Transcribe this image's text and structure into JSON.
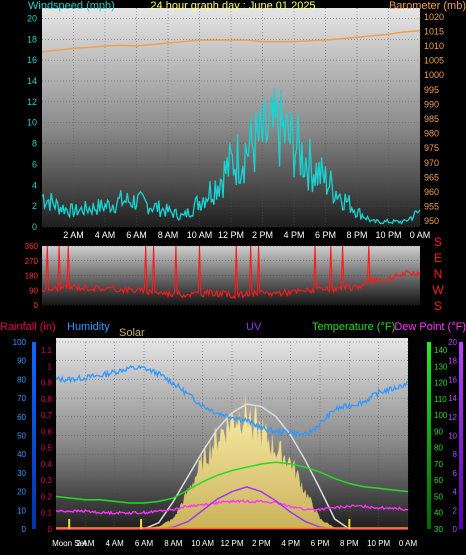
{
  "colors": {
    "windspeed": "#19d3d3",
    "barometer": "#f0a050",
    "direction": "#ff1a1a",
    "rain": "#e0005a",
    "humidity": "#3399ff",
    "solar": "#e8d890",
    "uv": "#9b30ff",
    "temperature": "#22dd22",
    "dewpoint": "#ff33ff",
    "title": "#ffff66"
  },
  "chart_data": [
    {
      "type": "line",
      "title": "24 hour graph day : June 01 2025",
      "ylabel_left": "Windspeed (mph)",
      "ylabel_right": "Barometer (mb)",
      "x_ticks": [
        "2 AM",
        "4 AM",
        "6 AM",
        "8 AM",
        "10 AM",
        "12 PM",
        "2 PM",
        "4 PM",
        "6 PM",
        "8 PM",
        "10 PM",
        "0 AM"
      ],
      "y_left_ticks": [
        "0",
        "2",
        "4",
        "6",
        "8",
        "10",
        "12",
        "14",
        "16",
        "18",
        "20"
      ],
      "y_right_ticks": [
        "950",
        "955",
        "960",
        "965",
        "970",
        "975",
        "980",
        "985",
        "990",
        "995",
        "1000",
        "1005",
        "1010",
        "1015",
        "1020"
      ],
      "ylim_left": [
        0,
        21
      ],
      "ylim_right": [
        948,
        1023
      ],
      "x": [
        0,
        1,
        2,
        3,
        4,
        5,
        6,
        7,
        8,
        9,
        10,
        11,
        12,
        13,
        14,
        15,
        16,
        17,
        18,
        19,
        20,
        21,
        22,
        23,
        24
      ],
      "series": [
        {
          "name": "Windspeed (mph)",
          "axis": "left",
          "values": [
            3.0,
            2.0,
            1.5,
            1.8,
            2.0,
            2.5,
            2.5,
            2.0,
            1.5,
            1.0,
            2.5,
            4.0,
            6.0,
            7.5,
            8.5,
            9.5,
            8.0,
            6.0,
            4.5,
            3.0,
            1.5,
            0.5,
            0.5,
            0.5,
            1.5
          ]
        },
        {
          "name": "Barometer (mb)",
          "axis": "right",
          "values": [
            1008.0,
            1008.5,
            1009.2,
            1009.5,
            1010.0,
            1010.2,
            1010.0,
            1010.5,
            1011.0,
            1011.5,
            1012.0,
            1012.0,
            1012.0,
            1012.0,
            1011.5,
            1011.5,
            1011.5,
            1011.8,
            1012.0,
            1012.5,
            1013.0,
            1013.5,
            1014.0,
            1014.8,
            1015.2
          ]
        }
      ]
    },
    {
      "type": "line",
      "title": "",
      "ylabel_right": "SENWS",
      "y_left_ticks": [
        "0",
        "90",
        "180",
        "270",
        "360"
      ],
      "compass_labels": [
        "S",
        "E",
        "N",
        "W",
        "S"
      ],
      "ylim": [
        0,
        360
      ],
      "x": [
        0,
        1,
        2,
        3,
        4,
        5,
        6,
        7,
        8,
        9,
        10,
        11,
        12,
        13,
        14,
        15,
        16,
        17,
        18,
        19,
        20,
        21,
        22,
        23,
        24
      ],
      "series": [
        {
          "name": "Wind direction",
          "values": [
            95,
            100,
            110,
            105,
            100,
            95,
            90,
            80,
            70,
            65,
            70,
            75,
            60,
            65,
            70,
            75,
            80,
            90,
            95,
            100,
            110,
            150,
            160,
            190,
            200
          ]
        }
      ]
    },
    {
      "type": "area",
      "title": "",
      "legend": [
        "Rainfall (in)",
        "Humidity",
        "Solar",
        "UV",
        "Temperature (°F)",
        "Dew Point (°F)"
      ],
      "x_ticks": [
        "Moon Set",
        "2 AM",
        "4 AM",
        "6 AM",
        "8 AM",
        "10 AM",
        "12 PM",
        "2 PM",
        "4 PM",
        "6 PM",
        "8 PM",
        "10 PM",
        "0 AM"
      ],
      "y_humidity_ticks": [
        "0",
        "10",
        "20",
        "30",
        "40",
        "50",
        "60",
        "70",
        "80",
        "90",
        "100"
      ],
      "y_rain_ticks": [
        "0",
        "0.1",
        "0.2",
        "0.3",
        "0.4",
        "0.5",
        "0.6",
        "0.7",
        "0.8",
        "0.9",
        "1",
        "1.1"
      ],
      "y_temp_ticks": [
        "30",
        "40",
        "50",
        "60",
        "70",
        "80",
        "90",
        "100",
        "110",
        "120",
        "130",
        "140"
      ],
      "y_uv_ticks": [
        "0",
        "2",
        "4",
        "6",
        "8",
        "10",
        "12",
        "14",
        "16",
        "18",
        "20"
      ],
      "ylim_humidity": [
        0,
        100
      ],
      "ylim_rain": [
        0,
        1.15
      ],
      "ylim_temp": [
        30,
        145
      ],
      "ylim_uv": [
        0,
        20
      ],
      "x": [
        0,
        1,
        2,
        3,
        4,
        5,
        6,
        7,
        8,
        9,
        10,
        11,
        12,
        13,
        14,
        15,
        16,
        17,
        18,
        19,
        20,
        21,
        22,
        23,
        24
      ],
      "series": [
        {
          "name": "Humidity",
          "values": [
            80,
            80,
            81,
            82,
            84,
            86,
            86,
            83,
            78,
            72,
            66,
            62,
            60,
            58,
            54,
            52,
            52,
            50,
            56,
            64,
            66,
            68,
            73,
            75,
            78
          ]
        },
        {
          "name": "Temperature (°F)",
          "values": [
            50,
            49,
            48,
            48,
            47,
            46,
            46,
            47,
            49,
            54,
            59,
            63,
            66,
            68,
            70,
            71,
            70,
            68,
            65,
            61,
            58,
            56,
            55,
            54,
            53
          ]
        },
        {
          "name": "Dew Point (°F)",
          "values": [
            41,
            41,
            41,
            40,
            40,
            40,
            40,
            41,
            42,
            44,
            45,
            46,
            47,
            47,
            47,
            46,
            44,
            42,
            42,
            43,
            44,
            44,
            43,
            43,
            42
          ]
        },
        {
          "name": "UV",
          "values": [
            0,
            0,
            0,
            0,
            0,
            0,
            0,
            0,
            0.2,
            0.8,
            2.0,
            3.2,
            4.0,
            4.5,
            4.0,
            3.0,
            1.8,
            0.8,
            0.2,
            0,
            0,
            0,
            0,
            0,
            0
          ]
        },
        {
          "name": "Solar",
          "values": [
            0,
            0,
            0,
            0,
            0,
            0,
            0,
            0.02,
            0.08,
            0.3,
            0.55,
            0.75,
            0.9,
            0.95,
            0.8,
            0.65,
            0.55,
            0.3,
            0.08,
            0.01,
            0,
            0,
            0,
            0,
            0
          ]
        },
        {
          "name": "Solar max",
          "values": [
            0,
            0,
            0,
            0,
            0,
            0,
            0,
            0.05,
            0.22,
            0.42,
            0.62,
            0.8,
            0.93,
            1.0,
            0.98,
            0.9,
            0.75,
            0.55,
            0.32,
            0.08,
            0,
            0,
            0,
            0,
            0
          ]
        },
        {
          "name": "Rainfall (in)",
          "values": [
            0,
            0,
            0,
            0,
            0,
            0,
            0,
            0,
            0,
            0,
            0,
            0,
            0,
            0,
            0,
            0,
            0,
            0,
            0,
            0,
            0,
            0,
            0,
            0,
            0
          ]
        }
      ]
    }
  ]
}
